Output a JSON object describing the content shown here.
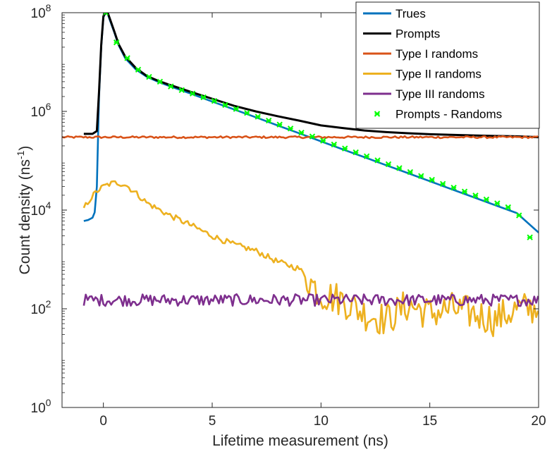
{
  "chart_data": {
    "type": "line",
    "title": "",
    "xlabel": "Lifetime measurement (ns)",
    "ylabel": "Count density (ns",
    "ylabel_sup": "-1",
    "ylabel_close": ")",
    "xlim": [
      -1.9,
      20
    ],
    "ylim": [
      1,
      100000000
    ],
    "yscale": "log",
    "grid": false,
    "legend_position": "top-right",
    "x_ticks": [
      {
        "value": 0,
        "label": "0"
      },
      {
        "value": 5,
        "label": "5"
      },
      {
        "value": 10,
        "label": "10"
      },
      {
        "value": 15,
        "label": "15"
      },
      {
        "value": 20,
        "label": "20"
      }
    ],
    "y_ticks": [
      {
        "value": 1,
        "base": "10",
        "exp": "0"
      },
      {
        "value": 100,
        "base": "10",
        "exp": "2"
      },
      {
        "value": 10000,
        "base": "10",
        "exp": "4"
      },
      {
        "value": 1000000,
        "base": "10",
        "exp": "6"
      },
      {
        "value": 100000000,
        "base": "10",
        "exp": "8"
      }
    ],
    "series": [
      {
        "name": "Trues",
        "color": "#0072BD",
        "style": "line",
        "x": [
          -0.9,
          -0.7,
          -0.5,
          -0.4,
          -0.3,
          -0.2,
          -0.1,
          0,
          0.1,
          0.2,
          0.3,
          0.5,
          0.7,
          1,
          1.5,
          2,
          2.5,
          3,
          4,
          5,
          6,
          7,
          8,
          9,
          10,
          11,
          12,
          13,
          14,
          15,
          16,
          17,
          18,
          19,
          20
        ],
        "y": [
          6000,
          6300,
          7000,
          9000,
          30000,
          2000000,
          20000000,
          80000000,
          100000000,
          95000000,
          70000000,
          40000000,
          22000000,
          12000000,
          7000000,
          5000000,
          4000000,
          3300000,
          2300000,
          1580000,
          1100000,
          760000,
          520000,
          360000,
          247000,
          170000,
          118000,
          81000,
          56000,
          38500,
          26500,
          18300,
          12600,
          8700,
          3500
        ]
      },
      {
        "name": "Prompts",
        "color": "#000000",
        "style": "line",
        "x": [
          -0.9,
          -0.5,
          -0.3,
          -0.2,
          -0.1,
          0,
          0.1,
          0.2,
          0.3,
          0.5,
          0.7,
          1,
          1.5,
          2,
          2.5,
          3,
          4,
          5,
          6,
          7,
          8,
          9,
          10,
          11,
          12,
          13,
          14,
          15,
          16,
          17,
          18,
          19,
          20
        ],
        "y": [
          350000,
          350000,
          400000,
          2500000,
          22000000,
          85000000,
          100000000,
          100000000,
          75000000,
          42000000,
          23000000,
          13000000,
          7500000,
          5200000,
          4200000,
          3500000,
          2500000,
          1800000,
          1300000,
          1000000,
          800000,
          650000,
          520000,
          460000,
          410000,
          380000,
          360000,
          345000,
          335000,
          325000,
          318000,
          312000,
          300000
        ]
      },
      {
        "name": "Type I randoms",
        "color": "#D95319",
        "style": "line",
        "x": [
          -1.9,
          20
        ],
        "y": [
          300000,
          300000
        ],
        "noise": 0.02
      },
      {
        "name": "Type II randoms",
        "color": "#EDB120",
        "style": "line",
        "x": [
          -0.9,
          -0.6,
          -0.3,
          0,
          0.3,
          0.6,
          1,
          1.5,
          2,
          3,
          4,
          5,
          6,
          7,
          8,
          9,
          9.3,
          10,
          11,
          12,
          13,
          14,
          15,
          16,
          17,
          18,
          19,
          20
        ],
        "y": [
          11000,
          17000,
          24000,
          30000,
          34000,
          36000,
          33000,
          22000,
          14000,
          8000,
          5000,
          3000,
          2000,
          1500,
          900,
          650,
          450,
          200,
          150,
          80,
          60,
          120,
          80,
          100,
          80,
          60,
          100,
          100
        ],
        "noise": 0.35,
        "noise_from": 9.3
      },
      {
        "name": "Type III randoms",
        "color": "#7E2F8E",
        "style": "line",
        "x": [
          -0.9,
          20
        ],
        "y": [
          150,
          150
        ],
        "noise": 0.12
      },
      {
        "name": "Prompts - Randoms",
        "color": "#00FF00",
        "style": "markers",
        "x": [
          0.1,
          0.6,
          1.1,
          1.6,
          2.1,
          2.6,
          3.1,
          3.6,
          4.1,
          4.6,
          5.1,
          5.6,
          6.1,
          6.6,
          7.1,
          7.6,
          8.1,
          8.6,
          9.1,
          9.6,
          10.1,
          10.6,
          11.1,
          11.6,
          12.1,
          12.6,
          13.1,
          13.6,
          14.1,
          14.6,
          15.1,
          15.6,
          16.1,
          16.6,
          17.1,
          17.6,
          18.1,
          18.6,
          19.1,
          19.6
        ],
        "y": [
          100000000,
          25000000,
          12000000,
          7000000,
          5000000,
          4000000,
          3200000,
          2700000,
          2300000,
          1930000,
          1630000,
          1350000,
          1120000,
          930000,
          780000,
          650000,
          540000,
          450000,
          370000,
          310000,
          255000,
          213000,
          177000,
          148000,
          123000,
          102000,
          85000,
          71000,
          59000,
          49000,
          41000,
          34000,
          28500,
          23700,
          19700,
          16400,
          13700,
          11400,
          7800,
          2800
        ]
      }
    ]
  }
}
